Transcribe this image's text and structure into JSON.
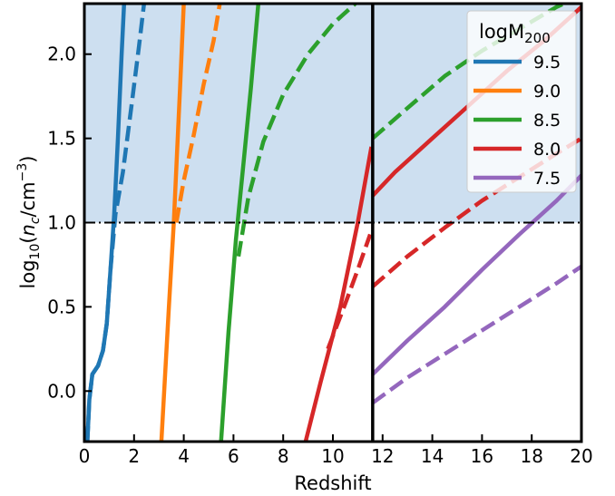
{
  "chart_data": {
    "type": "line",
    "xlabel": "Redshift",
    "ylabel_prefix": "log",
    "ylabel_sub": "10",
    "ylabel_open": "(",
    "ylabel_n": "n",
    "ylabel_c": "c",
    "ylabel_unit": "/cm",
    "ylabel_exp": "−3",
    "ylabel_close": ")",
    "xlim": [
      0,
      20
    ],
    "ylim": [
      -0.3,
      2.3
    ],
    "xticks": [
      0,
      2,
      4,
      6,
      8,
      10,
      12,
      14,
      16,
      18,
      20
    ],
    "xtick_labels": [
      "0",
      "2",
      "4",
      "6",
      "8",
      "10",
      "12",
      "14",
      "16",
      "18",
      "20"
    ],
    "yticks": [
      0.0,
      0.5,
      1.0,
      1.5,
      2.0
    ],
    "ytick_labels": [
      "0.0",
      "0.5",
      "1.0",
      "1.5",
      "2.0"
    ],
    "shaded_region": {
      "y_from": 1.0,
      "y_to": 2.3,
      "color": "#cddff0"
    },
    "hline": {
      "y": 1.0,
      "style": "dash-dot",
      "color": "#000000"
    },
    "vline": {
      "x": 11.6,
      "color": "#000000"
    },
    "legend": {
      "title": "logM",
      "title_sub": "200",
      "placement": "top-right"
    },
    "series": [
      {
        "name": "9.5",
        "color": "#1f77b4",
        "solid": [
          [
            0.12,
            -0.3
          ],
          [
            0.2,
            -0.05
          ],
          [
            0.32,
            0.1
          ],
          [
            0.55,
            0.15
          ],
          [
            0.75,
            0.24
          ],
          [
            0.9,
            0.4
          ],
          [
            1.05,
            0.72
          ],
          [
            1.2,
            1.05
          ],
          [
            1.35,
            1.5
          ],
          [
            1.5,
            2.0
          ],
          [
            1.6,
            2.3
          ]
        ],
        "dashed": [
          [
            0.12,
            -0.3
          ],
          [
            0.2,
            -0.05
          ],
          [
            0.32,
            0.1
          ],
          [
            0.55,
            0.15
          ],
          [
            0.75,
            0.24
          ],
          [
            0.9,
            0.4
          ],
          [
            1.05,
            0.72
          ],
          [
            1.25,
            1.05
          ],
          [
            1.55,
            1.3
          ],
          [
            1.9,
            1.7
          ],
          [
            2.2,
            2.05
          ],
          [
            2.4,
            2.3
          ]
        ],
        "dashed2": []
      },
      {
        "name": "9.0",
        "color": "#ff7f0e",
        "solid": [
          [
            3.1,
            -0.3
          ],
          [
            3.4,
            0.5
          ],
          [
            3.6,
            1.0
          ],
          [
            3.85,
            1.8
          ],
          [
            4.0,
            2.3
          ]
        ],
        "dashed": [
          [
            3.7,
            1.0
          ],
          [
            4.0,
            1.25
          ],
          [
            4.4,
            1.52
          ],
          [
            4.8,
            1.82
          ],
          [
            5.2,
            2.08
          ],
          [
            5.45,
            2.3
          ]
        ],
        "dashed2": []
      },
      {
        "name": "8.5",
        "color": "#2ca02c",
        "solid": [
          [
            5.5,
            -0.3
          ],
          [
            5.8,
            0.35
          ],
          [
            6.1,
            0.9
          ],
          [
            6.4,
            1.35
          ],
          [
            6.7,
            1.8
          ],
          [
            7.0,
            2.3
          ]
        ],
        "dashed": [
          [
            6.2,
            0.8
          ],
          [
            6.6,
            1.15
          ],
          [
            7.2,
            1.48
          ],
          [
            8.0,
            1.76
          ],
          [
            9.0,
            2.0
          ],
          [
            10.0,
            2.18
          ],
          [
            10.9,
            2.3
          ]
        ],
        "dashed2": [
          [
            11.6,
            1.5
          ],
          [
            13.0,
            1.68
          ],
          [
            14.5,
            1.87
          ],
          [
            16.0,
            2.02
          ],
          [
            17.5,
            2.15
          ],
          [
            19.0,
            2.28
          ],
          [
            19.3,
            2.3
          ]
        ]
      },
      {
        "name": "8.0",
        "color": "#d62728",
        "solid": [
          [
            8.9,
            -0.3
          ],
          [
            9.5,
            0.05
          ],
          [
            10.3,
            0.5
          ],
          [
            11.0,
            1.0
          ],
          [
            11.55,
            1.45
          ]
        ],
        "solid2": [
          [
            11.6,
            1.16
          ],
          [
            12.5,
            1.3
          ],
          [
            14.0,
            1.5
          ],
          [
            15.5,
            1.7
          ],
          [
            17.0,
            1.9
          ],
          [
            18.5,
            2.08
          ],
          [
            20.0,
            2.28
          ]
        ],
        "dashed": [
          [
            9.8,
            0.25
          ],
          [
            10.5,
            0.52
          ],
          [
            11.0,
            0.72
          ],
          [
            11.5,
            0.93
          ]
        ],
        "dashed2": [
          [
            11.6,
            0.62
          ],
          [
            13.0,
            0.8
          ],
          [
            14.5,
            0.97
          ],
          [
            16.0,
            1.13
          ],
          [
            17.5,
            1.27
          ],
          [
            19.0,
            1.41
          ],
          [
            20.0,
            1.5
          ]
        ]
      },
      {
        "name": "7.5",
        "color": "#9467bd",
        "solid": [],
        "solid2": [
          [
            11.6,
            0.1
          ],
          [
            13.0,
            0.3
          ],
          [
            14.5,
            0.5
          ],
          [
            16.0,
            0.72
          ],
          [
            17.5,
            0.93
          ],
          [
            19.0,
            1.13
          ],
          [
            20.0,
            1.28
          ]
        ],
        "dashed": [],
        "dashed2": [
          [
            11.6,
            -0.07
          ],
          [
            13.0,
            0.08
          ],
          [
            14.5,
            0.22
          ],
          [
            16.0,
            0.36
          ],
          [
            17.5,
            0.5
          ],
          [
            19.0,
            0.64
          ],
          [
            20.0,
            0.74
          ]
        ]
      }
    ]
  }
}
